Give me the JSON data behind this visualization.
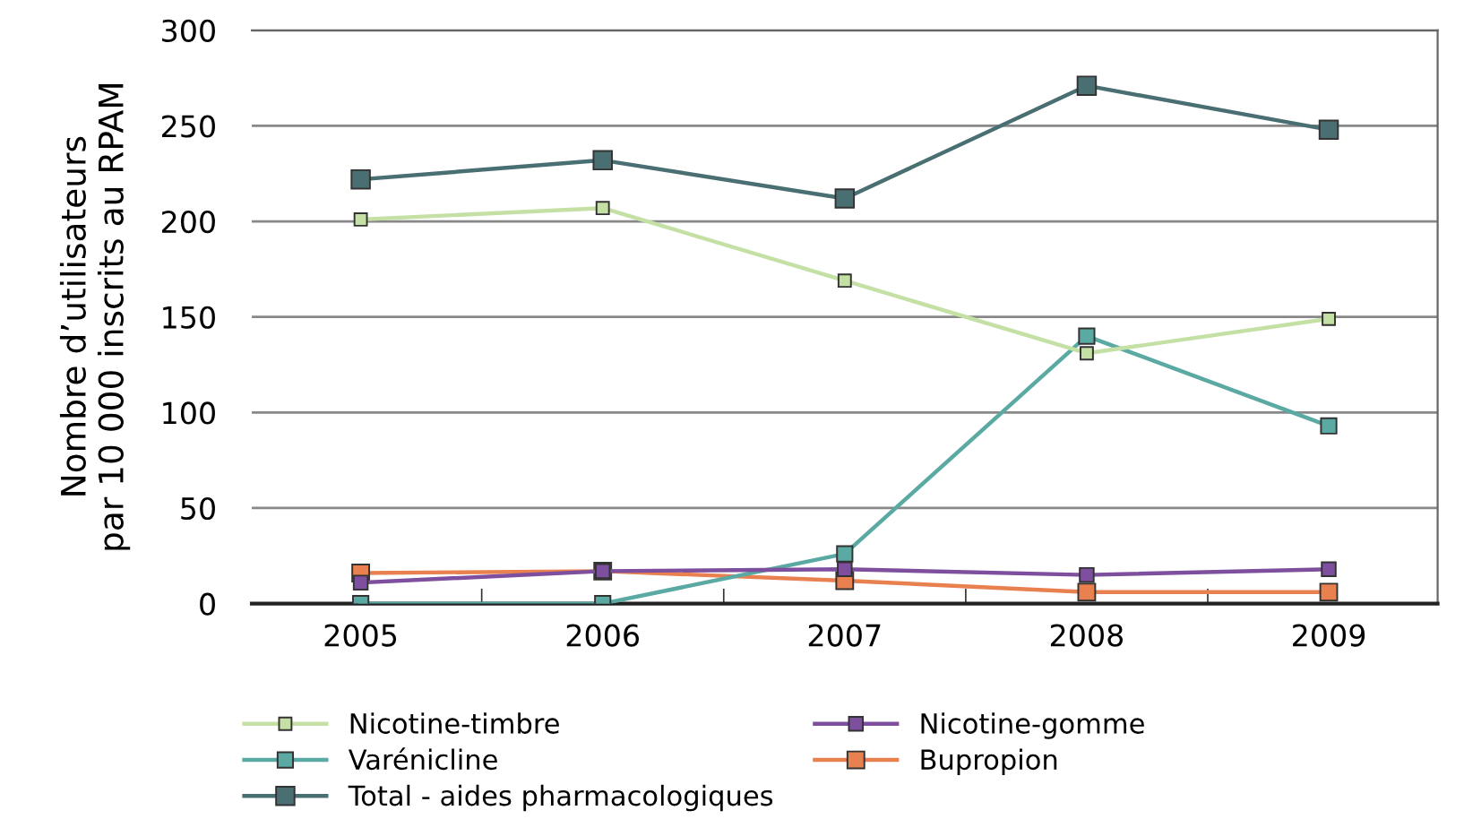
{
  "chart_data": {
    "type": "line",
    "ylabel": "Nombre d’utilisateurs\npar 10 000 inscrits au RPAM",
    "categories": [
      "2005",
      "2006",
      "2007",
      "2008",
      "2009"
    ],
    "series": [
      {
        "name": "Nicotine-timbre",
        "color": "#c5e0a5",
        "values": [
          201,
          207,
          169,
          131,
          149
        ]
      },
      {
        "name": "Nicotine-gomme",
        "color": "#7d4f9e",
        "values": [
          11,
          17,
          18,
          15,
          18
        ]
      },
      {
        "name": "Varénicline",
        "color": "#5aa9a3",
        "values": [
          0,
          0,
          26,
          140,
          93
        ]
      },
      {
        "name": "Bupropion",
        "color": "#e8804f",
        "values": [
          16,
          17,
          12,
          6,
          6
        ]
      },
      {
        "name": "Total - aides pharmacologiques",
        "color": "#4a6f73",
        "values": [
          222,
          232,
          212,
          271,
          248
        ]
      }
    ],
    "ylim": [
      0,
      300
    ],
    "yticks": [
      0,
      50,
      100,
      150,
      200,
      250,
      300
    ],
    "grid": "y",
    "legend": "bottom",
    "marker": "square",
    "line_style": "solid"
  }
}
